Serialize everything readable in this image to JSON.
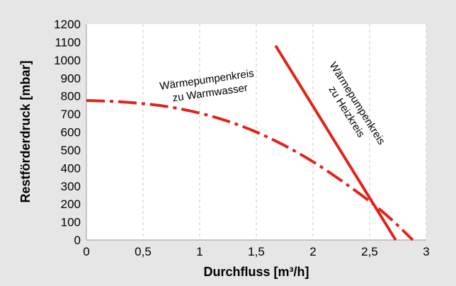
{
  "colors": {
    "background": "#e6e6e6",
    "plot_background": "#ffffff",
    "series": "#e2231a",
    "grid": "#c8c8c8"
  },
  "chart_data": {
    "type": "line",
    "title": "",
    "xlabel": "Durchfluss [m³/h]",
    "ylabel": "Restförderdruck [mbar]",
    "xlim": [
      0,
      3
    ],
    "ylim": [
      0,
      1200
    ],
    "xticks": [
      0,
      0.5,
      1,
      1.5,
      2,
      2.5,
      3
    ],
    "xtick_labels": [
      "0",
      "0,5",
      "1",
      "1,5",
      "2",
      "2,5",
      "3"
    ],
    "yticks": [
      0,
      100,
      200,
      300,
      400,
      500,
      600,
      700,
      800,
      900,
      1000,
      1100,
      1200
    ],
    "ytick_labels": [
      "0",
      "100",
      "200",
      "300",
      "400",
      "500",
      "600",
      "700",
      "800",
      "900",
      "1000",
      "1100",
      "1200"
    ],
    "grid": "vertical dashed",
    "series": [
      {
        "label_lines": [
          "Wärmepumpenkreis",
          "zu Warmwasser"
        ],
        "style": "dash-dot",
        "x": [
          0,
          0.25,
          0.5,
          0.75,
          1.0,
          1.25,
          1.5,
          1.75,
          2.0,
          2.25,
          2.5,
          2.7,
          2.88
        ],
        "y": [
          775,
          770,
          758,
          738,
          705,
          660,
          600,
          525,
          435,
          330,
          215,
          110,
          0
        ]
      },
      {
        "label_lines": [
          "Wärmepumpenkreis",
          "zu Heizkreis"
        ],
        "style": "solid",
        "x": [
          1.67,
          2.73
        ],
        "y": [
          1080,
          0
        ]
      }
    ]
  }
}
